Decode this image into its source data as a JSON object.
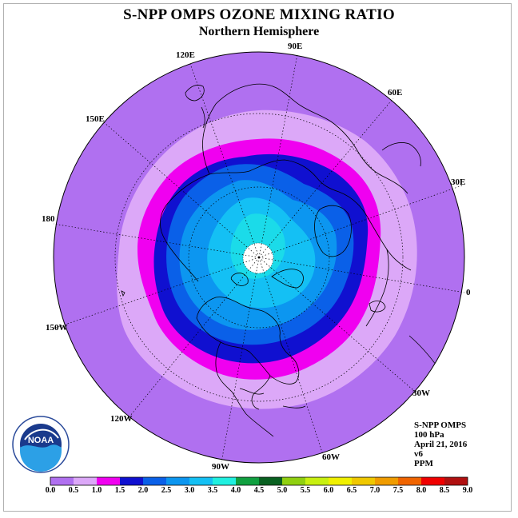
{
  "title": "S-NPP OMPS OZONE MIXING RATIO",
  "subtitle": "Northern Hemisphere",
  "map": {
    "projection": "north-polar-stereographic",
    "longitude_labels": [
      "90E",
      "60E",
      "30E",
      "0",
      "30W",
      "60W",
      "90W",
      "120W",
      "150W",
      "180",
      "150E",
      "120E"
    ]
  },
  "info": {
    "instrument": "S-NPP OMPS",
    "level": "100 hPa",
    "date": "April 21, 2016",
    "version": "v6",
    "units": "PPM"
  },
  "colorbar": {
    "ticks": [
      "0.0",
      "0.5",
      "1.0",
      "1.5",
      "2.0",
      "2.5",
      "3.0",
      "3.5",
      "4.0",
      "4.5",
      "5.0",
      "5.5",
      "6.0",
      "6.5",
      "7.0",
      "7.5",
      "8.0",
      "8.5",
      "9.0"
    ],
    "colors": [
      "#b070f0",
      "#dca8f8",
      "#f000f0",
      "#1010d0",
      "#0a60e8",
      "#0c96f0",
      "#14c0f4",
      "#20f0e0",
      "#10a040",
      "#086020",
      "#90d010",
      "#c8f010",
      "#f0f000",
      "#f0c800",
      "#f09c00",
      "#f06400",
      "#f00000",
      "#b01010",
      "#8c5a3c"
    ]
  },
  "logo": {
    "text": "NOAA",
    "ring_text": "NATIONAL OCEANIC AND ATMOSPHERIC ADMINISTRATION U.S. DEPARTMENT OF COMMERCE"
  }
}
